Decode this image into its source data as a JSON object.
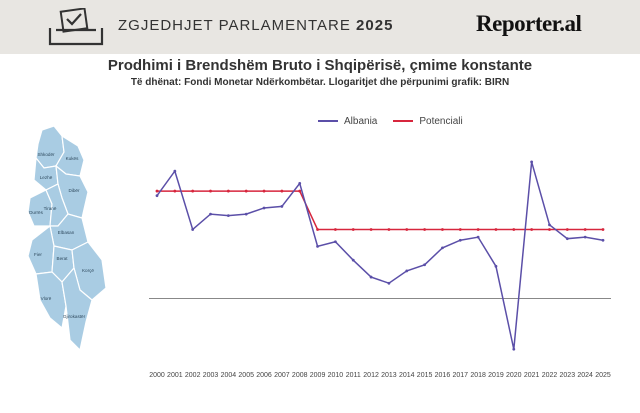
{
  "header": {
    "election_light": "ZGJEDHJET PARLAMENTARE",
    "election_year": "2025",
    "logo": "Reporter.al",
    "ballot_icon": "ballot-box-icon"
  },
  "title": "Prodhimi i Brendshëm Bruto i Shqipërisë, çmime konstante",
  "subtitle": "Të dhënat: Fondi Monetar Ndërkombëtar. Llogaritjet dhe përpunimi grafik: BIRN",
  "map": {
    "labels": [
      "Shkodër",
      "Kukës",
      "Lezhë",
      "Dibër",
      "Durrës",
      "Tiranë",
      "Elbasan",
      "Fier",
      "Berat",
      "Korçë",
      "Vlorë",
      "Gjirokastër"
    ],
    "fill": "#a9cce3",
    "stroke": "#ffffff"
  },
  "chart_data": {
    "type": "line",
    "x": [
      "2000",
      "2001",
      "2002",
      "2003",
      "2004",
      "2005",
      "2006",
      "2007",
      "2008",
      "2009",
      "2010",
      "2011",
      "2012",
      "2013",
      "2014",
      "2015",
      "2016",
      "2017",
      "2018",
      "2019",
      "2020",
      "2021",
      "2022",
      "2023",
      "2024",
      "2025"
    ],
    "series": [
      {
        "name": "Albania",
        "color": "#5b4fa8",
        "values": [
          6.7,
          8.3,
          4.5,
          5.5,
          5.4,
          5.5,
          5.9,
          6.0,
          7.5,
          3.4,
          3.7,
          2.5,
          1.4,
          1.0,
          1.8,
          2.2,
          3.3,
          3.8,
          4.0,
          2.1,
          -3.3,
          8.9,
          4.8,
          3.9,
          4.0,
          3.8
        ]
      },
      {
        "name": "Potenciali",
        "color": "#d7263d",
        "values": [
          7.0,
          7.0,
          7.0,
          7.0,
          7.0,
          7.0,
          7.0,
          7.0,
          7.0,
          4.5,
          4.5,
          4.5,
          4.5,
          4.5,
          4.5,
          4.5,
          4.5,
          4.5,
          4.5,
          4.5,
          4.5,
          4.5,
          4.5,
          4.5,
          4.5,
          4.5
        ]
      }
    ],
    "ylim": [
      -4,
      10
    ],
    "grid": false,
    "zero_line": true,
    "legend": "top-center"
  }
}
